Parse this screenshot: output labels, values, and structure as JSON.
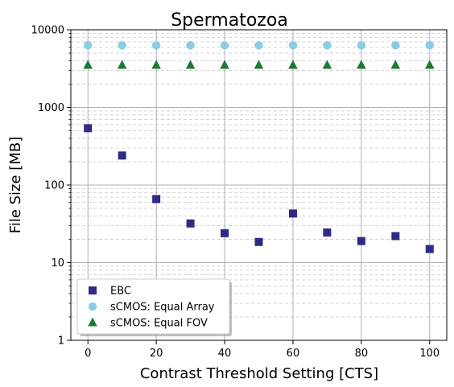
{
  "chart_data": {
    "type": "scatter",
    "title": "Spermatozoa",
    "xlabel": "Contrast Threshold Setting [CTS]",
    "ylabel": "File Size [MB]",
    "xlim": [
      -5,
      105
    ],
    "ylim": [
      1,
      10000
    ],
    "yscale": "log",
    "x_ticks": [
      0,
      20,
      40,
      60,
      80,
      100
    ],
    "y_ticks": [
      1,
      10,
      100,
      1000,
      10000
    ],
    "y_tick_labels": [
      "1",
      "10",
      "100",
      "1000",
      "10000"
    ],
    "grid": true,
    "legend_position": "lower-left",
    "x": [
      0,
      10,
      20,
      30,
      40,
      50,
      60,
      70,
      80,
      90,
      100
    ],
    "series": [
      {
        "name": "EBC",
        "marker": "square",
        "color": "#2e2a85",
        "values": [
          540,
          240,
          66,
          32,
          24,
          18.5,
          43,
          24.5,
          19,
          22,
          15
        ]
      },
      {
        "name": "sCMOS: Equal Array",
        "marker": "circle",
        "color": "#87cde8",
        "values": [
          6300,
          6300,
          6300,
          6300,
          6300,
          6300,
          6300,
          6300,
          6300,
          6300,
          6300
        ]
      },
      {
        "name": "sCMOS: Equal FOV",
        "marker": "triangle",
        "color": "#1a7a33",
        "values": [
          3500,
          3500,
          3500,
          3500,
          3500,
          3500,
          3500,
          3500,
          3500,
          3500,
          3500
        ]
      }
    ]
  }
}
